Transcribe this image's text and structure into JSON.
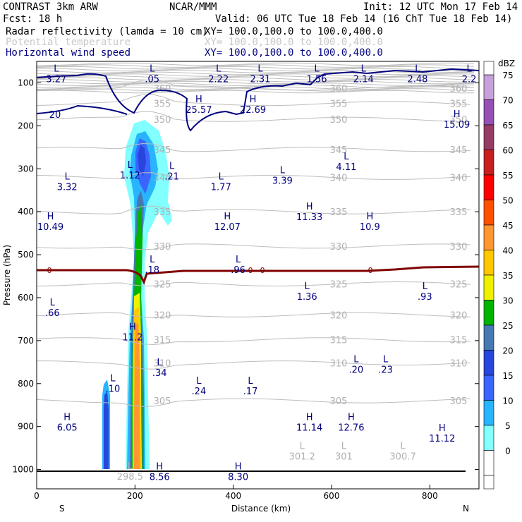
{
  "header": {
    "model": "CONTRAST  3km ARW",
    "org": "NCAR/MMM",
    "init": "Init: 12 UTC Mon 17 Feb 14",
    "fcst": "Fcst:   18 h",
    "valid": "Valid: 06 UTC Tue 18 Feb 14 (16 ChT Tue 18 Feb 14)",
    "fields": [
      {
        "name": "Radar reflectivity (lamda = 10 cm)",
        "xy": "XY= 100.0,100.0 to 100.0,400.0",
        "color": "#000000"
      },
      {
        "name": "Potential temperature",
        "xy": "XY= 100.0,100.0 to 100.0,400.0",
        "color": "#c8c8c8"
      },
      {
        "name": "Horizontal wind speed",
        "xy": "XY= 100.0,100.0 to 100.0,400.0",
        "color": "#00007f"
      }
    ]
  },
  "chart_data": {
    "type": "heatmap",
    "xlabel": "Distance (km)",
    "ylabel": "Pressure (hPa)",
    "x_ticks": [
      0,
      200,
      400,
      600,
      800
    ],
    "y_ticks": [
      100,
      200,
      300,
      400,
      500,
      600,
      700,
      800,
      900,
      1000
    ],
    "xlim": [
      0,
      900
    ],
    "ylim": [
      1045,
      50
    ],
    "x_end_labels": {
      "left": "S",
      "right": "N"
    },
    "colorbar": {
      "unit": "dBZ",
      "levels": [
        {
          "value": "75",
          "color": "#c8a0dc"
        },
        {
          "value": "70",
          "color": "#9650b4"
        },
        {
          "value": "65",
          "color": "#963c64"
        },
        {
          "value": "60",
          "color": "#c81e1e"
        },
        {
          "value": "55",
          "color": "#ff0000"
        },
        {
          "value": "50",
          "color": "#ff5000"
        },
        {
          "value": "45",
          "color": "#ff9632"
        },
        {
          "value": "40",
          "color": "#ffc800"
        },
        {
          "value": "35",
          "color": "#f0f000"
        },
        {
          "value": "30",
          "color": "#00b400"
        },
        {
          "value": "25",
          "color": "#4678b4"
        },
        {
          "value": "20",
          "color": "#2846dc"
        },
        {
          "value": "15",
          "color": "#3c64ff"
        },
        {
          "value": "10",
          "color": "#28b4ff"
        },
        {
          "value": "5",
          "color": "#82ffff"
        },
        {
          "value": "0",
          "color": "#ffffff"
        }
      ]
    },
    "theta_contours": [
      {
        "label": "360",
        "p": 112
      },
      {
        "label": "355",
        "p": 148
      },
      {
        "label": "350",
        "p": 185
      },
      {
        "label": "345",
        "p": 255
      },
      {
        "label": "340",
        "p": 320
      },
      {
        "label": "335",
        "p": 400
      },
      {
        "label": "330",
        "p": 480
      },
      {
        "label": "325",
        "p": 568
      },
      {
        "label": "320",
        "p": 640
      },
      {
        "label": "315",
        "p": 698
      },
      {
        "label": "310",
        "p": 752
      },
      {
        "label": "305",
        "p": 840
      }
    ],
    "zero_line_label": "0",
    "wind_contour_label": "20",
    "extrema": [
      {
        "kind": "L",
        "value": "3.27",
        "x": 40,
        "p": 74
      },
      {
        "kind": "L",
        "value": ".05",
        "x": 235,
        "p": 74
      },
      {
        "kind": "L",
        "value": "2.22",
        "x": 370,
        "p": 74
      },
      {
        "kind": "L",
        "value": "2.31",
        "x": 455,
        "p": 74
      },
      {
        "kind": "L",
        "value": "1.56",
        "x": 570,
        "p": 74
      },
      {
        "kind": "L",
        "value": "2.14",
        "x": 665,
        "p": 74
      },
      {
        "kind": "L",
        "value": "2.48",
        "x": 775,
        "p": 74
      },
      {
        "kind": "L",
        "value": "2.2",
        "x": 880,
        "p": 74
      },
      {
        "kind": "H",
        "value": "25.57",
        "x": 330,
        "p": 145
      },
      {
        "kind": "H",
        "value": "22.69",
        "x": 440,
        "p": 145
      },
      {
        "kind": "H",
        "value": "15.09",
        "x": 855,
        "p": 180
      },
      {
        "kind": "L",
        "value": "4.11",
        "x": 630,
        "p": 278
      },
      {
        "kind": "L",
        "value": "1.12",
        "x": 190,
        "p": 298
      },
      {
        "kind": "L",
        "value": ".21",
        "x": 275,
        "p": 300
      },
      {
        "kind": "L",
        "value": "3.39",
        "x": 500,
        "p": 310
      },
      {
        "kind": "L",
        "value": "3.32",
        "x": 62,
        "p": 325
      },
      {
        "kind": "L",
        "value": "1.77",
        "x": 375,
        "p": 325
      },
      {
        "kind": "H",
        "value": "11.33",
        "x": 555,
        "p": 395
      },
      {
        "kind": "H",
        "value": "10.49",
        "x": 28,
        "p": 418
      },
      {
        "kind": "H",
        "value": "12.07",
        "x": 388,
        "p": 418
      },
      {
        "kind": "H",
        "value": "10.9",
        "x": 678,
        "p": 418
      },
      {
        "kind": "L",
        "value": ".18",
        "x": 235,
        "p": 518
      },
      {
        "kind": "L",
        "value": ".96",
        "x": 410,
        "p": 518
      },
      {
        "kind": "L",
        "value": "1.36",
        "x": 550,
        "p": 580
      },
      {
        "kind": "L",
        "value": ".93",
        "x": 790,
        "p": 580
      },
      {
        "kind": "L",
        "value": ".66",
        "x": 32,
        "p": 618
      },
      {
        "kind": "H",
        "value": "11.2",
        "x": 195,
        "p": 675
      },
      {
        "kind": "L",
        "value": ".34",
        "x": 250,
        "p": 758
      },
      {
        "kind": "L",
        "value": ".20",
        "x": 650,
        "p": 750
      },
      {
        "kind": "L",
        "value": ".23",
        "x": 710,
        "p": 750
      },
      {
        "kind": "L",
        "value": ".10",
        "x": 155,
        "p": 795
      },
      {
        "kind": "L",
        "value": ".24",
        "x": 330,
        "p": 800
      },
      {
        "kind": "L",
        "value": ".17",
        "x": 435,
        "p": 800
      },
      {
        "kind": "H",
        "value": "6.05",
        "x": 62,
        "p": 885
      },
      {
        "kind": "H",
        "value": "11.14",
        "x": 555,
        "p": 885
      },
      {
        "kind": "H",
        "value": "12.76",
        "x": 640,
        "p": 885
      },
      {
        "kind": "H",
        "value": "11.12",
        "x": 825,
        "p": 910
      },
      {
        "kind": "H",
        "value": "8.56",
        "x": 250,
        "p": 1000
      },
      {
        "kind": "H",
        "value": "8.30",
        "x": 410,
        "p": 1000
      }
    ],
    "theta_extrema": [
      {
        "kind": "L",
        "value": "301.2",
        "x": 540,
        "p": 975
      },
      {
        "kind": "L",
        "value": "301",
        "x": 625,
        "p": 975
      },
      {
        "kind": "L",
        "value": "300.7",
        "x": 745,
        "p": 975
      },
      {
        "kind": "L",
        "value": "298.5",
        "x": 190,
        "p": 1022
      }
    ]
  }
}
